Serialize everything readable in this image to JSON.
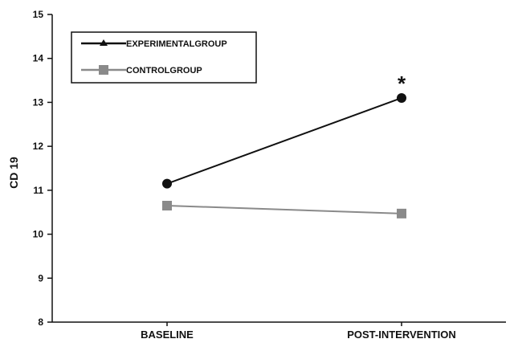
{
  "chart_data": {
    "type": "line",
    "categories": [
      "BASELINE",
      "POST-INTERVENTION"
    ],
    "series": [
      {
        "name": "EXPERIMENTALGROUP",
        "values": [
          11.15,
          13.1
        ],
        "color": "#111111",
        "marker": "circle",
        "legend_marker": "triangle"
      },
      {
        "name": "CONTROLGROUP",
        "values": [
          10.65,
          10.47
        ],
        "color": "#8a8a8a",
        "marker": "square",
        "legend_marker": "square"
      }
    ],
    "ylabel": "CD 19",
    "xlabel": "",
    "title": "",
    "ylim": [
      8,
      15
    ],
    "yticks": [
      "8",
      "9",
      "10",
      "11",
      "12",
      "13",
      "14",
      "15"
    ],
    "grid": false,
    "legend_position": "top-left",
    "annotations": [
      {
        "text": "*",
        "series": 0,
        "category": 1
      }
    ]
  }
}
